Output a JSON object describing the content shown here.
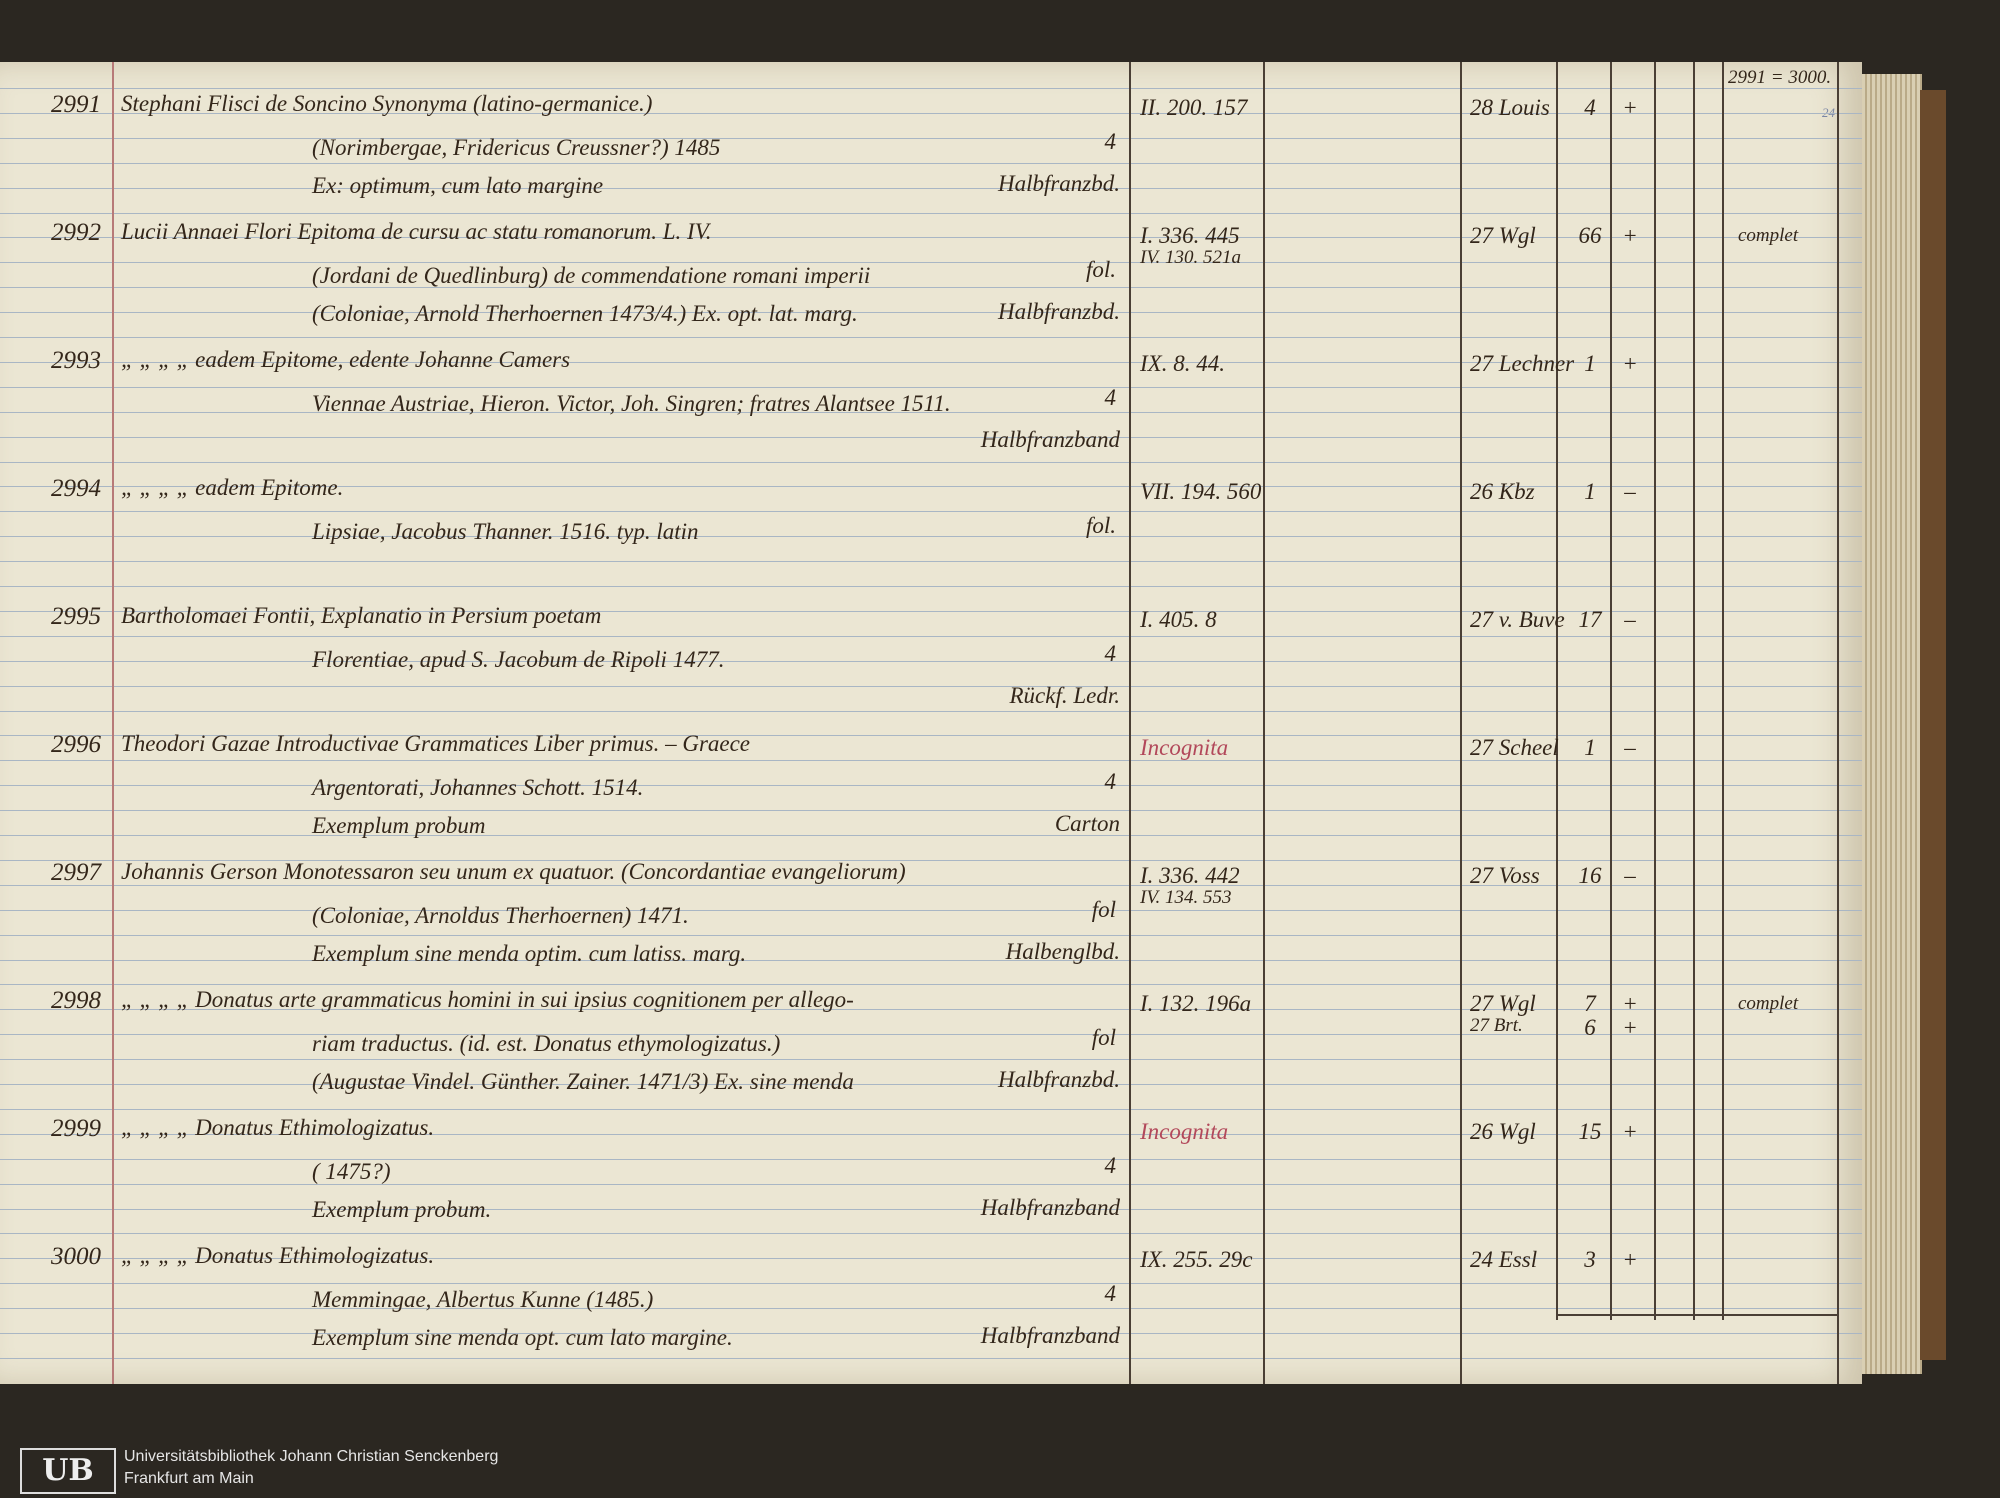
{
  "header": {
    "range": "2991 = 3000.",
    "page_number": "24"
  },
  "entries": [
    {
      "number": "2991",
      "lines": [
        "Stephani Flisci de Soncino Synonyma (latino-germanice.)",
        "(Norimbergae, Fridericus Creussner?) 1485",
        "Ex: optimum, cum lato margine"
      ],
      "size": "4",
      "binding": "Halbfranzbd.",
      "ref": [
        "II. 200. 157"
      ],
      "tally": [
        {
          "date": "28 Louis",
          "count": "4",
          "mark": "+"
        }
      ]
    },
    {
      "number": "2992",
      "lines": [
        "Lucii Annaei Flori Epitoma de cursu ac statu romanorum. L. IV.",
        "(Jordani de Quedlinburg) de commendatione romani imperii",
        "(Coloniae, Arnold Therhoernen 1473/4.)  Ex. opt. lat. marg."
      ],
      "size": "fol.",
      "binding": "Halbfranzbd.",
      "ref": [
        "I. 336. 445",
        "IV. 130. 521a"
      ],
      "tally": [
        {
          "date": "27 Wgl",
          "count": "66",
          "mark": "+"
        }
      ],
      "note": "complet"
    },
    {
      "number": "2993",
      "lines": [
        "„ „ „ „ eadem Epitome, edente Johanne Camers",
        "Viennae Austriae, Hieron. Victor, Joh. Singren; fratres Alantsee 1511."
      ],
      "size": "4",
      "binding": "Halbfranzband",
      "ref": [
        "IX. 8. 44."
      ],
      "tally": [
        {
          "date": "27 Lechner",
          "count": "1",
          "mark": "+"
        }
      ]
    },
    {
      "number": "2994",
      "lines": [
        "„ „ „ „ eadem Epitome.",
        "Lipsiae, Jacobus Thanner. 1516. typ. latin"
      ],
      "size": "fol.",
      "ref": [
        "VII. 194. 560"
      ],
      "tally": [
        {
          "date": "26 Kbz",
          "count": "1",
          "mark": "–"
        }
      ]
    },
    {
      "number": "2995",
      "lines": [
        "Bartholomaei Fontii, Explanatio in Persium poetam",
        "Florentiae, apud S. Jacobum de Ripoli 1477."
      ],
      "size": "4",
      "binding": "Rückf. Ledr.",
      "ref": [
        "I. 405. 8"
      ],
      "tally": [
        {
          "date": "27 v. Buve",
          "count": "17",
          "mark": "–"
        }
      ]
    },
    {
      "number": "2996",
      "lines": [
        "Theodori Gazae Introductivae Grammatices Liber primus. – Graece",
        "Argentorati, Johannes Schott. 1514.",
        "Exemplum probum"
      ],
      "size": "4",
      "binding": "Carton",
      "ref": [
        "Incognita"
      ],
      "ref_color": "#b2485a",
      "tally": [
        {
          "date": "27 Scheel",
          "count": "1",
          "mark": "–"
        }
      ]
    },
    {
      "number": "2997",
      "lines": [
        "Johannis Gerson Monotessaron seu unum ex quatuor. (Concordantiae evangeliorum)",
        "(Coloniae, Arnoldus Therhoernen) 1471.",
        "Exemplum sine menda optim. cum latiss. marg."
      ],
      "size": "fol",
      "binding": "Halbenglbd.",
      "ref": [
        "I. 336. 442",
        "IV. 134. 553"
      ],
      "tally": [
        {
          "date": "27 Voss",
          "count": "16",
          "mark": "–"
        }
      ]
    },
    {
      "number": "2998",
      "lines": [
        "„ „ „ „ Donatus arte grammaticus homini in sui ipsius cognitionem per allego-",
        "riam traductus. (id. est. Donatus ethymologizatus.)",
        "(Augustae Vindel. Günther. Zainer. 1471/3) Ex. sine menda"
      ],
      "size": "fol",
      "binding": "Halbfranzbd.",
      "ref": [
        "I. 132. 196a"
      ],
      "tally": [
        {
          "date": "27 Wgl",
          "count": "7",
          "mark": "+"
        },
        {
          "date": "27 Brt.",
          "count": "6",
          "mark": "+"
        }
      ],
      "note": "complet"
    },
    {
      "number": "2999",
      "lines": [
        "„ „ „ „ Donatus Ethimologizatus.",
        "(                                        1475?)",
        "Exemplum probum."
      ],
      "size": "4",
      "binding": "Halbfranzband",
      "ref": [
        "Incognita"
      ],
      "ref_color": "#b2485a",
      "tally": [
        {
          "date": "26 Wgl",
          "count": "15",
          "mark": "+"
        }
      ]
    },
    {
      "number": "3000",
      "lines": [
        "„ „ „ „ Donatus Ethimologizatus.",
        "Memmingae, Albertus Kunne (1485.)",
        "Exemplum sine menda opt. cum lato margine."
      ],
      "size": "4",
      "binding": "Halbfranzband",
      "ref": [
        "IX. 255. 29c"
      ],
      "tally": [
        {
          "date": "24 Essl",
          "count": "3",
          "mark": "+"
        }
      ]
    }
  ],
  "footer": {
    "logo": "UB",
    "lines": [
      "Universitätsbibliothek Johann Christian Senckenberg",
      "Frankfurt am Main"
    ]
  }
}
